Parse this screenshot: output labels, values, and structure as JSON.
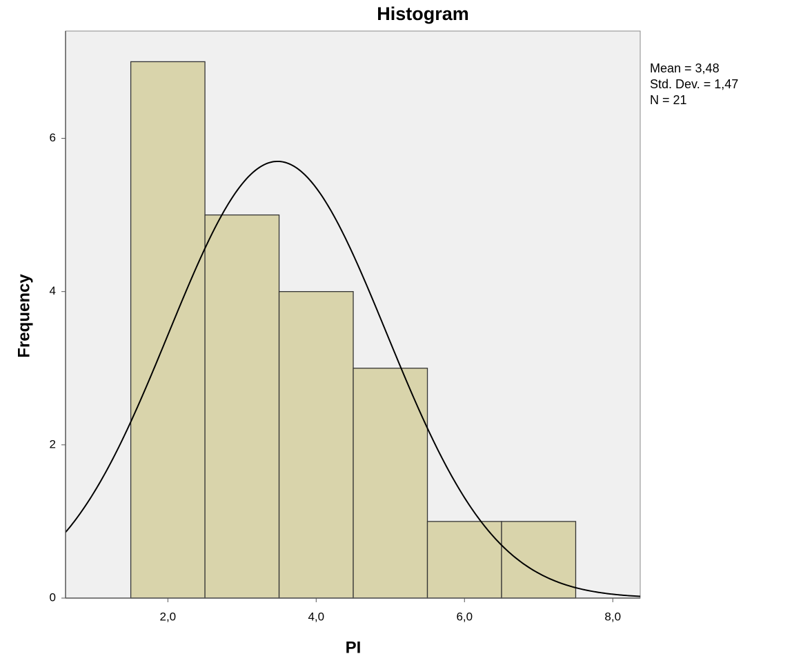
{
  "chart_data": {
    "type": "histogram",
    "title": "Histogram",
    "x_label": "PI",
    "y_label": "Frequency",
    "bins": [
      1.5,
      2.5,
      3.5,
      4.5,
      5.5,
      6.5,
      7.5
    ],
    "values": [
      7,
      5,
      4,
      3,
      1,
      1
    ],
    "color": "#d9d4ab",
    "xlim": [
      0.62,
      8.37
    ],
    "ylim": [
      0,
      7.4
    ],
    "xticks": [
      {
        "value": 2,
        "label": "2,0"
      },
      {
        "value": 4,
        "label": "4,0"
      },
      {
        "value": 6,
        "label": "6,0"
      },
      {
        "value": 8,
        "label": "8,0"
      }
    ],
    "yticks": [
      0,
      2,
      4,
      6
    ],
    "stats": [
      {
        "value": 3.48,
        "label": "Mean = 3,48"
      },
      {
        "value": 1.47,
        "label": "Std. Dev. = 1,47"
      },
      {
        "value": 21,
        "label": "N = 21"
      }
    ],
    "normal_curve": true
  }
}
